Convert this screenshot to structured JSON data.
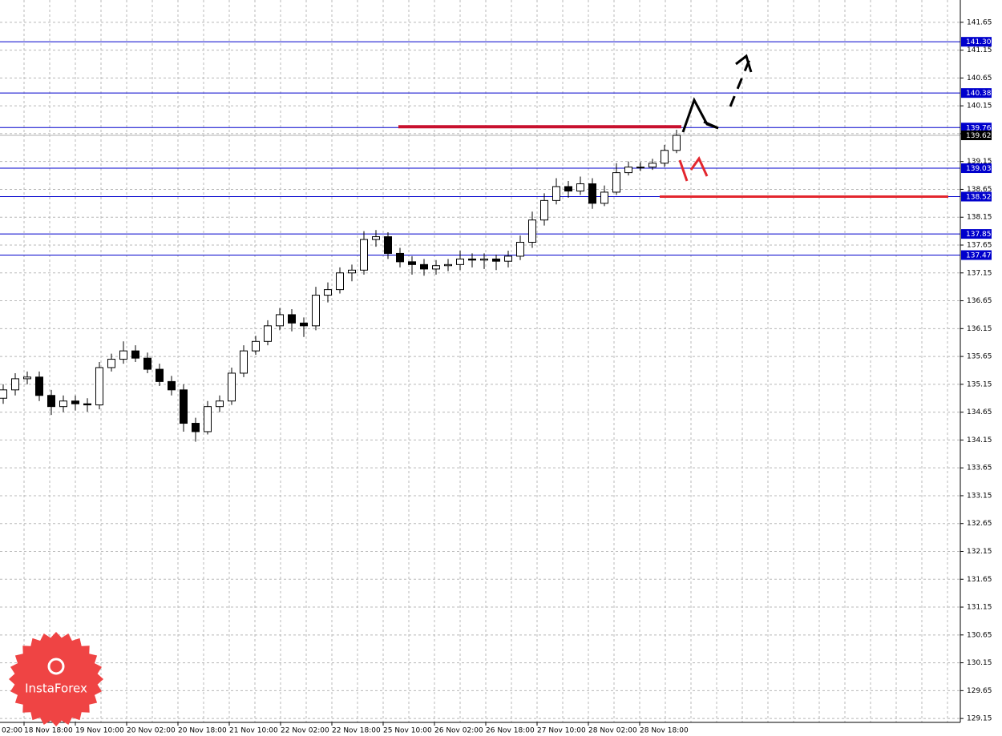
{
  "chart_data": {
    "type": "candlestick",
    "candles": {
      "open": [
        134.9,
        135.05,
        135.25,
        135.28,
        134.95,
        134.75,
        134.85,
        134.8,
        134.78,
        135.45,
        135.6,
        135.75,
        135.62,
        135.42,
        135.2,
        135.05,
        134.45,
        134.3,
        134.75,
        134.85,
        135.35,
        135.75,
        135.92,
        136.2,
        136.4,
        136.25,
        136.2,
        136.75,
        136.85,
        137.15,
        137.2,
        137.75,
        137.8,
        137.5,
        137.35,
        137.3,
        137.22,
        137.28,
        137.3,
        137.4,
        137.38,
        137.4,
        137.36,
        137.45,
        137.7,
        138.1,
        138.45,
        138.7,
        138.62,
        138.75,
        138.4,
        138.6,
        138.95,
        139.05,
        139.05,
        139.12,
        139.35
      ],
      "high": [
        135.15,
        135.35,
        135.38,
        135.38,
        135.05,
        134.95,
        134.95,
        134.9,
        135.55,
        135.7,
        135.92,
        135.85,
        135.72,
        135.52,
        135.3,
        135.15,
        134.55,
        134.85,
        134.95,
        135.45,
        135.85,
        136.02,
        136.3,
        136.52,
        136.5,
        136.35,
        136.9,
        136.98,
        137.25,
        137.3,
        137.9,
        137.92,
        137.88,
        137.6,
        137.45,
        137.4,
        137.38,
        137.4,
        137.55,
        137.5,
        137.5,
        137.48,
        137.55,
        137.82,
        138.25,
        138.58,
        138.85,
        138.8,
        138.88,
        138.85,
        138.72,
        139.12,
        139.15,
        139.14,
        139.2,
        139.45,
        139.72
      ],
      "low": [
        134.8,
        134.95,
        135.15,
        134.85,
        134.6,
        134.65,
        134.68,
        134.66,
        134.7,
        135.38,
        135.52,
        135.55,
        135.35,
        135.12,
        134.95,
        134.3,
        134.12,
        134.25,
        134.65,
        134.78,
        135.28,
        135.68,
        135.85,
        136.12,
        136.1,
        136.0,
        136.12,
        136.62,
        136.78,
        137.0,
        137.12,
        137.62,
        137.4,
        137.25,
        137.12,
        137.1,
        137.12,
        137.18,
        137.2,
        137.25,
        137.22,
        137.2,
        137.25,
        137.38,
        137.6,
        138.0,
        138.38,
        138.5,
        138.55,
        138.3,
        138.35,
        138.55,
        138.9,
        138.98,
        139.0,
        139.05,
        139.3
      ],
      "close": [
        135.05,
        135.25,
        135.28,
        134.95,
        134.75,
        134.85,
        134.8,
        134.78,
        135.45,
        135.6,
        135.75,
        135.62,
        135.42,
        135.2,
        135.05,
        134.45,
        134.3,
        134.75,
        134.85,
        135.35,
        135.75,
        135.92,
        136.2,
        136.4,
        136.25,
        136.2,
        136.75,
        136.85,
        137.15,
        137.2,
        137.75,
        137.8,
        137.5,
        137.35,
        137.3,
        137.22,
        137.28,
        137.3,
        137.4,
        137.38,
        137.4,
        137.36,
        137.45,
        137.7,
        138.1,
        138.45,
        138.7,
        138.62,
        138.75,
        138.4,
        138.6,
        138.95,
        139.05,
        139.05,
        139.12,
        139.35,
        139.62
      ]
    },
    "ylim": [
      129.08,
      142.05
    ],
    "yticks": [
      129.15,
      129.65,
      130.15,
      130.65,
      131.15,
      131.65,
      132.15,
      132.65,
      133.15,
      133.65,
      134.15,
      134.65,
      135.15,
      135.65,
      136.15,
      136.65,
      137.15,
      137.65,
      138.15,
      138.65,
      139.15,
      139.65,
      140.15,
      140.65,
      141.15,
      141.65
    ],
    "grid": true,
    "levels": [
      {
        "value": 141.3,
        "label": "141.30"
      },
      {
        "value": 140.38,
        "label": "140.38"
      },
      {
        "value": 139.76,
        "label": "139.76"
      },
      {
        "value": 139.03,
        "label": "139.03"
      },
      {
        "value": 138.52,
        "label": "138.52"
      },
      {
        "value": 137.85,
        "label": "137.85"
      },
      {
        "value": 137.47,
        "label": "137.47"
      }
    ],
    "level_color": "#0000cc",
    "current_price": {
      "value": 139.62,
      "label": "139.62"
    },
    "x_labels": [
      "02:00",
      "18 Nov 18:00",
      "19 Nov 10:00",
      "20 Nov 02:00",
      "20 Nov 18:00",
      "21 Nov 10:00",
      "22 Nov 02:00",
      "22 Nov 18:00",
      "25 Nov 10:00",
      "26 Nov 02:00",
      "26 Nov 18:00",
      "27 Nov 10:00",
      "28 Nov 02:00",
      "28 Nov 18:00"
    ],
    "watermark": "InstaForex"
  }
}
